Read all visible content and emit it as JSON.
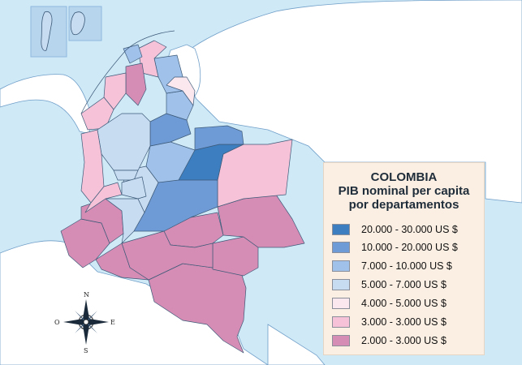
{
  "legend": {
    "title": "COLOMBIA",
    "subtitle_1": "PIB nominal per capita",
    "subtitle_2": "por departamentos",
    "items": [
      {
        "label": "20.000 - 30.000 US $",
        "color": "#3d7ec0"
      },
      {
        "label": "10.000 - 20.000 US $",
        "color": "#6e9ad6"
      },
      {
        "label": "7.000 - 10.000 US $",
        "color": "#9fc1ea"
      },
      {
        "label": "5.000 - 7.000 US $",
        "color": "#c7dcf1"
      },
      {
        "label": "4.000 - 5.000 US $",
        "color": "#fbe8ef"
      },
      {
        "label": "3.000 - 3.000 US $",
        "color": "#f5c2d8"
      },
      {
        "label": "2.000 - 3.000 US $",
        "color": "#d68db5"
      }
    ]
  },
  "compass": {
    "north": "N",
    "south": "S",
    "east": "E",
    "west": "O"
  },
  "colors": {
    "sea": "#cfe9f7",
    "land_neighbors": "#ffffff",
    "border": "#3d5a78"
  }
}
